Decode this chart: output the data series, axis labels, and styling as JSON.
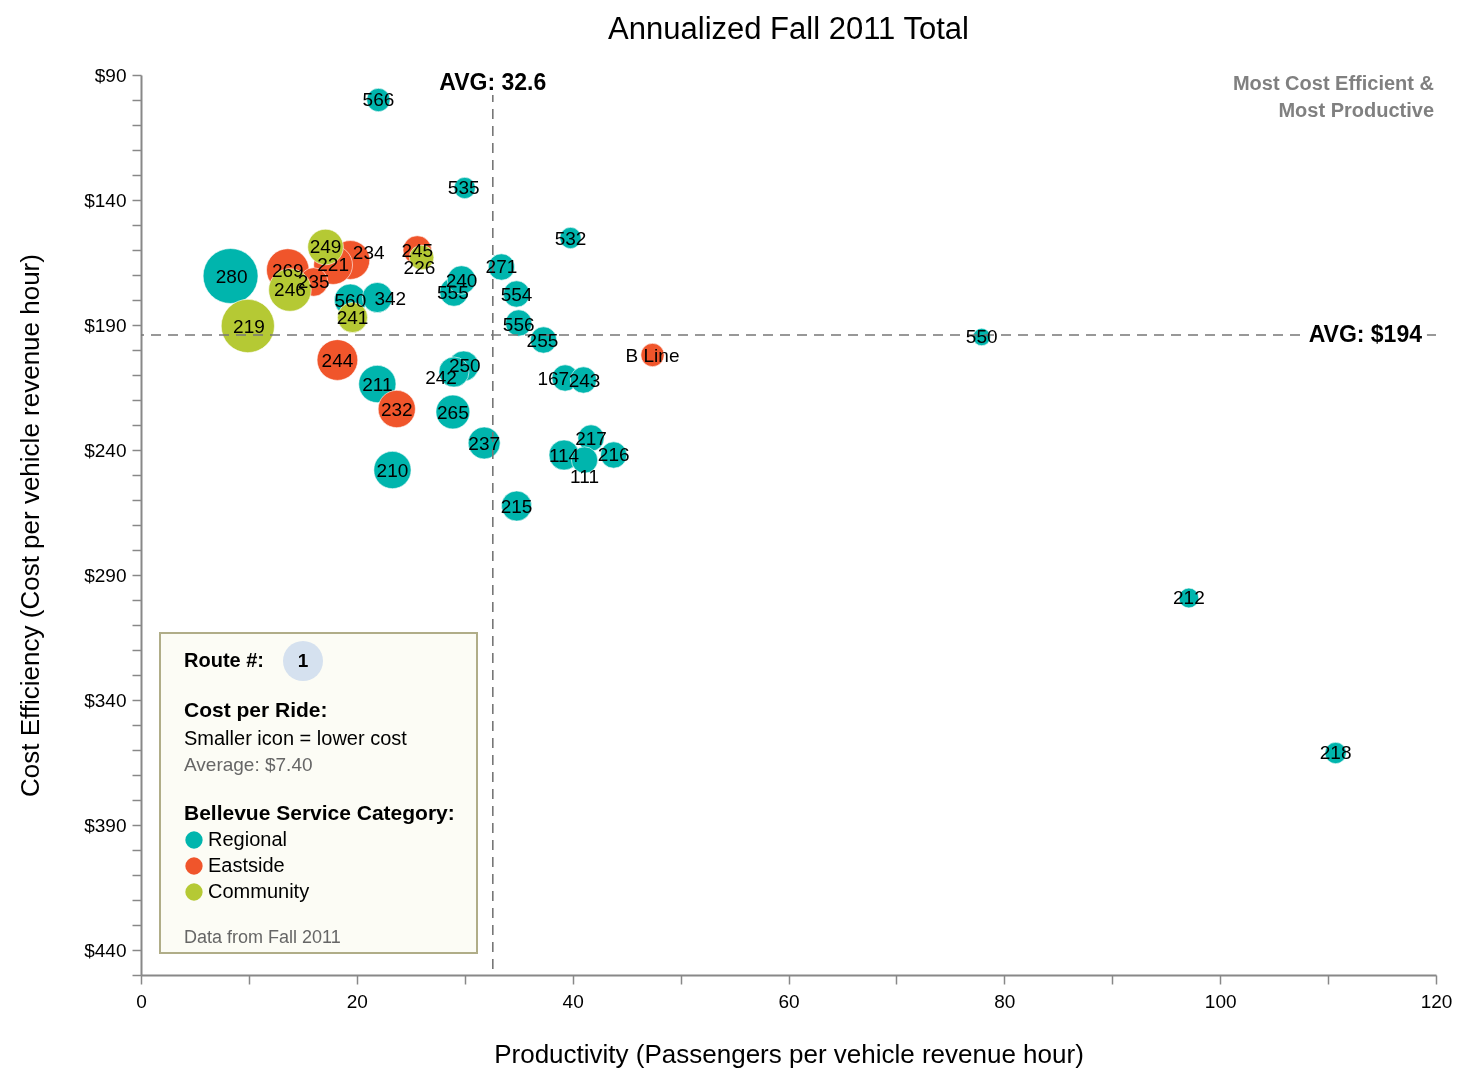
{
  "chart_data": {
    "type": "bubble",
    "title": "Annualized Fall 2011 Total",
    "xlabel": "Productivity (Passengers per vehicle revenue hour)",
    "ylabel": "Cost Efficiency (Cost per vehicle revenue hour)",
    "legend_title": "Bellevue Service Category:",
    "legend": "bottom left",
    "marker": "circle",
    "xlim": [
      0,
      120
    ],
    "xticks": [
      0,
      {
        "value": 10,
        "label": null
      },
      20,
      {
        "value": 30,
        "label": null
      },
      40,
      {
        "value": 50,
        "label": null
      },
      60,
      {
        "value": 70,
        "label": null
      },
      80,
      {
        "value": 90,
        "label": null
      },
      100,
      {
        "value": 110,
        "label": null
      },
      120
    ],
    "ylim": [
      450,
      90
    ],
    "yticks": [
      {
        "value": 90,
        "label": "$90"
      },
      {
        "value": 100,
        "label": null
      },
      {
        "value": 110,
        "label": null
      },
      {
        "value": 120,
        "label": null
      },
      {
        "value": 130,
        "label": null
      },
      {
        "value": 140,
        "label": "$140"
      },
      {
        "value": 150,
        "label": null
      },
      {
        "value": 160,
        "label": null
      },
      {
        "value": 170,
        "label": null
      },
      {
        "value": 180,
        "label": null
      },
      {
        "value": 190,
        "label": "$190"
      },
      {
        "value": 200,
        "label": null
      },
      {
        "value": 210,
        "label": null
      },
      {
        "value": 220,
        "label": null
      },
      {
        "value": 230,
        "label": null
      },
      {
        "value": 240,
        "label": "$240"
      },
      {
        "value": 250,
        "label": null
      },
      {
        "value": 260,
        "label": null
      },
      {
        "value": 270,
        "label": null
      },
      {
        "value": 280,
        "label": null
      },
      {
        "value": 290,
        "label": "$290"
      },
      {
        "value": 300,
        "label": null
      },
      {
        "value": 310,
        "label": null
      },
      {
        "value": 320,
        "label": null
      },
      {
        "value": 330,
        "label": null
      },
      {
        "value": 340,
        "label": "$340"
      },
      {
        "value": 350,
        "label": null
      },
      {
        "value": 360,
        "label": null
      },
      {
        "value": 370,
        "label": null
      },
      {
        "value": 380,
        "label": null
      },
      {
        "value": 390,
        "label": "$390"
      },
      {
        "value": 400,
        "label": null
      },
      {
        "value": 410,
        "label": null
      },
      {
        "value": 420,
        "label": null
      },
      {
        "value": 430,
        "label": null
      },
      {
        "value": 440,
        "label": "$440"
      },
      {
        "value": 450,
        "label": null
      }
    ],
    "series": [
      {
        "name": "Regional",
        "color": "#00b5ad",
        "x": [
          22.0,
          30.0,
          39.8,
          8.3,
          19.4,
          21.9,
          29.0,
          29.7,
          33.4,
          34.8,
          35.0,
          37.3,
          77.9,
          21.9,
          29.9,
          29.0,
          28.9,
          39.3,
          41.0,
          31.8,
          41.7,
          39.2,
          43.8,
          41.1,
          23.3,
          34.8,
          97.1,
          110.7
        ],
        "values": [
          100,
          135.2,
          155.2,
          170.4,
          180,
          179,
          176.8,
          172,
          166.8,
          177.6,
          189.2,
          196,
          194.8,
          213.6,
          206.4,
          208.8,
          224.8,
          211.2,
          212,
          237.2,
          235.2,
          242,
          242,
          244,
          248,
          262.4,
          299.2,
          361.2
        ],
        "sizes": [
          0.18,
          0.15,
          0.15,
          1,
          0.34,
          0.3,
          0.27,
          0.27,
          0.23,
          0.23,
          0.23,
          0.23,
          0.1,
          0.46,
          0.3,
          0.3,
          0.38,
          0.23,
          0.23,
          0.34,
          0.23,
          0.3,
          0.23,
          0.23,
          0.46,
          0.3,
          0.13,
          0.15
        ]
      },
      {
        "name": "Eastside",
        "color": "#f0552b",
        "x": [
          19.4,
          25.6,
          13.6,
          17.8,
          16.0,
          18.2,
          23.7,
          47.4
        ],
        "values": [
          164,
          160,
          168,
          166,
          172.8,
          204,
          223.6,
          202
        ],
        "sizes": [
          0.5,
          0.27,
          0.6,
          0.5,
          0.27,
          0.55,
          0.46,
          0.18
        ]
      },
      {
        "name": "Community",
        "color": "#b5c934",
        "x": [
          17.1,
          26.0,
          13.8,
          19.6,
          9.9
        ],
        "values": [
          158.8,
          163,
          176,
          187,
          190.4
        ],
        "sizes": [
          0.42,
          0.2,
          0.6,
          0.3,
          0.94
        ]
      }
    ],
    "ref_lines": [
      {
        "axis": "x",
        "value": 32.6,
        "label": "AVG: 32.6",
        "color": "#777777",
        "line_style": "dashed"
      },
      {
        "axis": "y",
        "value": 194,
        "label": "AVG: $194",
        "color": "#777777",
        "line_style": "dashed"
      }
    ],
    "annotations": [
      "Most Cost Efficient &\nMost Productive",
      "Route #:",
      "1",
      "Cost per Ride:",
      "Smaller icon = lower cost",
      "Average: $7.40",
      "Data from Fall 2011",
      {
        "text": "566",
        "x": 22.0,
        "y": 100.0
      },
      {
        "text": "535",
        "x": 29.9,
        "y": 135.2
      },
      {
        "text": "532",
        "x": 39.8,
        "y": 155.6
      },
      {
        "text": "249",
        "x": 17.1,
        "y": 158.8
      },
      {
        "text": "234",
        "x": 21.1,
        "y": 161.2
      },
      {
        "text": "245",
        "x": 25.6,
        "y": 160.4
      },
      {
        "text": "226",
        "x": 25.8,
        "y": 167.2
      },
      {
        "text": "269",
        "x": 13.6,
        "y": 168.4
      },
      {
        "text": "221",
        "x": 17.8,
        "y": 166
      },
      {
        "text": "280",
        "x": 8.4,
        "y": 170.8
      },
      {
        "text": "235",
        "x": 16.0,
        "y": 172.8
      },
      {
        "text": "246",
        "x": 13.8,
        "y": 176
      },
      {
        "text": "240",
        "x": 29.7,
        "y": 172.4
      },
      {
        "text": "555",
        "x": 28.9,
        "y": 177.2
      },
      {
        "text": "271",
        "x": 33.4,
        "y": 166.8
      },
      {
        "text": "554",
        "x": 34.8,
        "y": 178.0
      },
      {
        "text": "560",
        "x": 19.4,
        "y": 180.4
      },
      {
        "text": "342",
        "x": 23.1,
        "y": 179.6
      },
      {
        "text": "241",
        "x": 19.6,
        "y": 187
      },
      {
        "text": "219",
        "x": 10.0,
        "y": 190.8
      },
      {
        "text": "556",
        "x": 35.0,
        "y": 190.0
      },
      {
        "text": "255",
        "x": 37.2,
        "y": 196.4
      },
      {
        "text": "B Line",
        "x": 47.4,
        "y": 202.4
      },
      {
        "text": "550",
        "x": 77.9,
        "y": 194.8
      },
      {
        "text": "244",
        "x": 18.2,
        "y": 204.4
      },
      {
        "text": "250",
        "x": 30.0,
        "y": 206.4
      },
      {
        "text": "242",
        "x": 27.8,
        "y": 211.2
      },
      {
        "text": "211",
        "x": 21.9,
        "y": 214.0
      },
      {
        "text": "167",
        "x": 38.2,
        "y": 211.4
      },
      {
        "text": "243",
        "x": 41.1,
        "y": 212.4
      },
      {
        "text": "232",
        "x": 23.7,
        "y": 224.0
      },
      {
        "text": "265",
        "x": 28.9,
        "y": 225.2
      },
      {
        "text": "237",
        "x": 31.8,
        "y": 237.6
      },
      {
        "text": "217",
        "x": 41.7,
        "y": 235.6
      },
      {
        "text": "114",
        "x": 39.2,
        "y": 242.4
      },
      {
        "text": "216",
        "x": 43.8,
        "y": 242.0
      },
      {
        "text": "111",
        "x": 41.1,
        "y": 250.8
      },
      {
        "text": "210",
        "x": 23.3,
        "y": 248.4
      },
      {
        "text": "215",
        "x": 34.8,
        "y": 262.8
      },
      {
        "text": "212",
        "x": 97.1,
        "y": 299.2
      },
      {
        "text": "218",
        "x": 110.7,
        "y": 361.2
      }
    ]
  }
}
